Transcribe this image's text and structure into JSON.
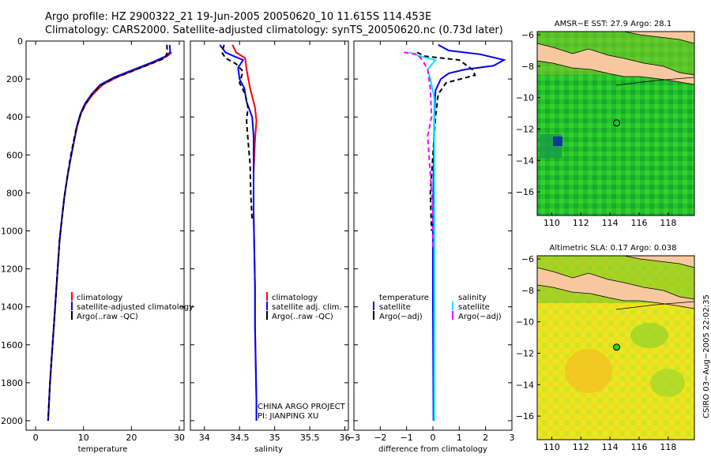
{
  "header": {
    "line1": "Argo profile: HZ 2900322_21 19-Jun-2005 20050620_10 11.615S 114.453E",
    "line2": "Climatology: CARS2000. Satellite-adjusted climatology: synTS_20050620.nc (0.73d later)"
  },
  "chart_data": [
    {
      "type": "line",
      "xlabel": "temperature",
      "ylabel": "",
      "xlim": [
        -2,
        31
      ],
      "ylim": [
        2050,
        0
      ],
      "y_reversed": true,
      "xticks": [
        "0",
        "10",
        "20",
        "30"
      ],
      "yticks": [
        "0",
        "200",
        "400",
        "600",
        "800",
        "1000",
        "1200",
        "1400",
        "1600",
        "1800",
        "2000"
      ],
      "legend": [
        "climatology",
        "satellite-adjusted climatology",
        "Argo(..raw -QC)"
      ],
      "series": [
        {
          "name": "climatology",
          "color": "#ff0000",
          "style": "solid",
          "points": [
            [
              28.4,
              60
            ],
            [
              27.5,
              80
            ],
            [
              25,
              110
            ],
            [
              21,
              150
            ],
            [
              17,
              190
            ],
            [
              14,
              230
            ],
            [
              12,
              280
            ],
            [
              10.5,
              330
            ],
            [
              9.5,
              380
            ],
            [
              8.7,
              450
            ],
            [
              8,
              530
            ],
            [
              7.3,
              620
            ],
            [
              6.6,
              720
            ],
            [
              6,
              820
            ],
            [
              5.5,
              930
            ],
            [
              5,
              1050
            ],
            [
              4.6,
              1200
            ],
            [
              4.2,
              1350
            ],
            [
              3.8,
              1500
            ],
            [
              3.4,
              1650
            ],
            [
              3,
              1800
            ],
            [
              2.8,
              1900
            ],
            [
              2.6,
              2000
            ]
          ]
        },
        {
          "name": "satellite-adjusted climatology",
          "color": "#0000ff",
          "style": "solid",
          "points": [
            [
              28,
              20
            ],
            [
              28.1,
              60
            ],
            [
              27.2,
              80
            ],
            [
              24.5,
              110
            ],
            [
              20.5,
              150
            ],
            [
              16.5,
              190
            ],
            [
              13.5,
              230
            ],
            [
              11.7,
              280
            ],
            [
              10.3,
              330
            ],
            [
              9.4,
              380
            ],
            [
              8.6,
              450
            ],
            [
              8,
              530
            ],
            [
              7.3,
              620
            ],
            [
              6.6,
              720
            ],
            [
              6,
              820
            ],
            [
              5.5,
              930
            ],
            [
              5,
              1050
            ],
            [
              4.6,
              1200
            ],
            [
              4.2,
              1350
            ],
            [
              3.8,
              1500
            ],
            [
              3.4,
              1650
            ],
            [
              3,
              1800
            ],
            [
              2.8,
              1900
            ],
            [
              2.6,
              2000
            ]
          ]
        },
        {
          "name": "Argo(..raw -QC)",
          "color": "#000000",
          "style": "dashed",
          "points": [
            [
              27.4,
              20
            ],
            [
              27.5,
              60
            ],
            [
              27,
              90
            ],
            [
              24,
              120
            ],
            [
              20,
              160
            ],
            [
              16,
              200
            ],
            [
              13.2,
              240
            ],
            [
              11.5,
              290
            ],
            [
              10.2,
              340
            ],
            [
              9.3,
              390
            ],
            [
              8.6,
              450
            ],
            [
              7.9,
              530
            ],
            [
              7.2,
              620
            ],
            [
              6.6,
              720
            ],
            [
              6,
              820
            ],
            [
              5.5,
              930
            ],
            [
              5,
              1050
            ],
            [
              4.6,
              1200
            ],
            [
              4.2,
              1350
            ],
            [
              3.8,
              1500
            ],
            [
              3.4,
              1650
            ],
            [
              3,
              1800
            ],
            [
              2.8,
              1900
            ],
            [
              2.6,
              2000
            ]
          ]
        }
      ]
    },
    {
      "type": "line",
      "xlabel": "salinity",
      "xlim": [
        33.8,
        36.05
      ],
      "ylim": [
        2050,
        0
      ],
      "y_reversed": true,
      "xticks": [
        "34",
        "34.5",
        "35",
        "35.5",
        "36"
      ],
      "legend": [
        "climatology",
        "satellite adj. clim.",
        "Argo(..raw -QC)"
      ],
      "annotation": [
        "CHINA ARGO PROJECT",
        "PI: JIANPING XU"
      ],
      "series": [
        {
          "name": "climatology",
          "color": "#ff0000",
          "style": "solid",
          "points": [
            [
              34.4,
              20
            ],
            [
              34.45,
              60
            ],
            [
              34.58,
              90
            ],
            [
              34.6,
              150
            ],
            [
              34.65,
              250
            ],
            [
              34.72,
              350
            ],
            [
              34.74,
              420
            ],
            [
              34.72,
              520
            ],
            [
              34.7,
              700
            ],
            [
              34.7,
              900
            ],
            [
              34.71,
              1100
            ],
            [
              34.72,
              1300
            ],
            [
              34.72,
              1500
            ],
            [
              34.73,
              1700
            ],
            [
              34.74,
              1900
            ],
            [
              34.74,
              2000
            ]
          ]
        },
        {
          "name": "satellite adj. clim.",
          "color": "#0000ff",
          "style": "solid",
          "points": [
            [
              34.22,
              20
            ],
            [
              34.3,
              60
            ],
            [
              34.42,
              80
            ],
            [
              34.55,
              100
            ],
            [
              34.48,
              140
            ],
            [
              34.5,
              200
            ],
            [
              34.57,
              250
            ],
            [
              34.6,
              320
            ],
            [
              34.68,
              400
            ],
            [
              34.7,
              500
            ],
            [
              34.7,
              700
            ],
            [
              34.7,
              900
            ],
            [
              34.71,
              1100
            ],
            [
              34.72,
              1300
            ],
            [
              34.72,
              1500
            ],
            [
              34.73,
              1700
            ],
            [
              34.74,
              1900
            ],
            [
              34.74,
              2000
            ]
          ]
        },
        {
          "name": "Argo(..raw -QC)",
          "color": "#000000",
          "style": "dashed",
          "points": [
            [
              34.28,
              20
            ],
            [
              34.25,
              60
            ],
            [
              34.3,
              90
            ],
            [
              34.45,
              120
            ],
            [
              34.55,
              160
            ],
            [
              34.5,
              220
            ],
            [
              34.58,
              280
            ],
            [
              34.62,
              350
            ],
            [
              34.6,
              420
            ],
            [
              34.62,
              520
            ],
            [
              34.65,
              650
            ],
            [
              34.66,
              800
            ],
            [
              34.68,
              950
            ]
          ]
        }
      ]
    },
    {
      "type": "line",
      "xlabel": "difference from climatology",
      "xlim": [
        -3,
        3
      ],
      "ylim": [
        2050,
        0
      ],
      "y_reversed": true,
      "xticks": [
        "−3",
        "−2",
        "−1",
        "0",
        "1",
        "2",
        "3"
      ],
      "legend_left": [
        "temperature",
        "satellite",
        "Argo(−adj)"
      ],
      "legend_right": [
        "salinity",
        "satellite",
        "Argo(−adj)"
      ],
      "series": [
        {
          "name": "temperature satellite",
          "color": "#0000ff",
          "style": "solid",
          "points": [
            [
              0.2,
              20
            ],
            [
              0.6,
              50
            ],
            [
              1.8,
              70
            ],
            [
              2.7,
              100
            ],
            [
              2.3,
              130
            ],
            [
              1.2,
              150
            ],
            [
              0.6,
              170
            ],
            [
              0.3,
              200
            ],
            [
              0.1,
              260
            ],
            [
              0.05,
              400
            ],
            [
              0.02,
              700
            ],
            [
              0,
              1000
            ],
            [
              0,
              1400
            ],
            [
              0.02,
              2000
            ]
          ]
        },
        {
          "name": "temperature Argo(-adj)",
          "color": "#000000",
          "style": "dashed",
          "points": [
            [
              -0.6,
              60
            ],
            [
              -0.3,
              80
            ],
            [
              1,
              100
            ],
            [
              1.5,
              150
            ],
            [
              1.6,
              180
            ],
            [
              0.5,
              220
            ],
            [
              0.2,
              280
            ],
            [
              0.1,
              400
            ],
            [
              0,
              600
            ],
            [
              -0.1,
              800
            ],
            [
              -0.05,
              1000
            ]
          ]
        },
        {
          "name": "salinity satellite",
          "color": "#00e5ff",
          "style": "solid",
          "points": [
            [
              -0.9,
              60
            ],
            [
              -0.5,
              80
            ],
            [
              0.1,
              100
            ],
            [
              -0.2,
              150
            ],
            [
              -0.1,
              200
            ],
            [
              0.05,
              300
            ],
            [
              0.05,
              500
            ],
            [
              0.05,
              800
            ],
            [
              0.05,
              1200
            ],
            [
              0.05,
              1600
            ],
            [
              0.05,
              2000
            ]
          ]
        },
        {
          "name": "salinity Argo(-adj)",
          "color": "#ff00ff",
          "style": "dashed",
          "points": [
            [
              -1.1,
              60
            ],
            [
              -0.6,
              70
            ],
            [
              -0.4,
              100
            ],
            [
              -0.2,
              150
            ],
            [
              -0.1,
              250
            ],
            [
              -0.05,
              400
            ],
            [
              -0.2,
              500
            ],
            [
              -0.1,
              700
            ],
            [
              0,
              900
            ],
            [
              0,
              1100
            ]
          ]
        }
      ]
    },
    {
      "type": "heatmap",
      "title": "AMSR−E SST: 27.9 Argo: 28.1",
      "xlim": [
        109,
        119.8
      ],
      "ylim": [
        -17.5,
        -5.8
      ],
      "xticks": [
        "110",
        "112",
        "114",
        "116",
        "118"
      ],
      "yticks": [
        "−6",
        "−8",
        "−10",
        "−12",
        "−14",
        "−16"
      ],
      "marker": {
        "lon": 114.453,
        "lat": -11.615
      }
    },
    {
      "type": "heatmap",
      "title": "Altimetric SLA: 0.17 Argo: 0.038",
      "xlim": [
        109,
        119.8
      ],
      "ylim": [
        -17.5,
        -5.8
      ],
      "xticks": [
        "110",
        "112",
        "114",
        "116",
        "118"
      ],
      "yticks": [
        "−6",
        "−8",
        "−10",
        "−12",
        "−14",
        "−16"
      ],
      "marker": {
        "lon": 114.453,
        "lat": -11.615
      }
    }
  ],
  "side_label": "CSIRO 03−Aug−2005 22:02:35"
}
